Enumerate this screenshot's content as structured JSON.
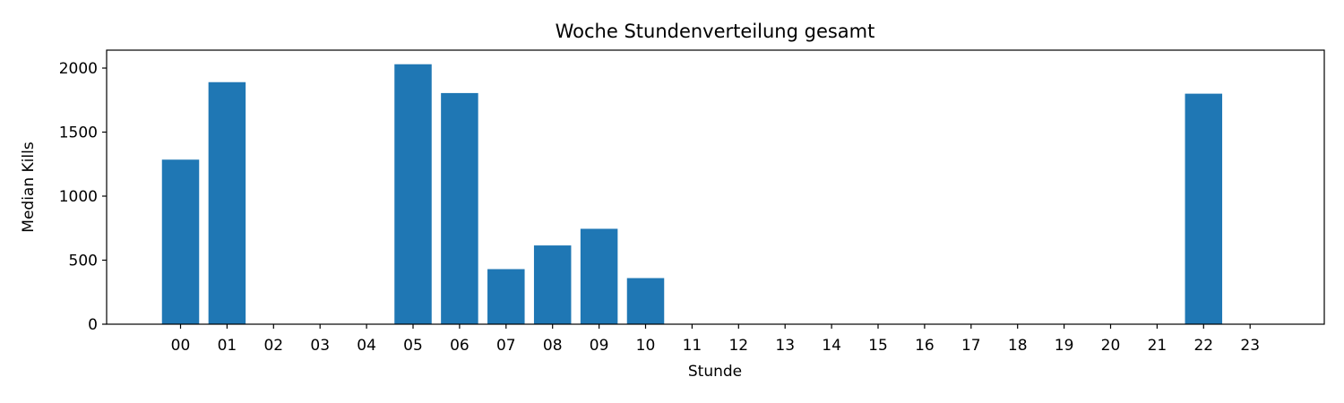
{
  "chart_data": {
    "type": "bar",
    "title": "Woche Stundenverteilung gesamt",
    "xlabel": "Stunde",
    "ylabel": "Median Kills",
    "categories": [
      "00",
      "01",
      "02",
      "03",
      "04",
      "05",
      "06",
      "07",
      "08",
      "09",
      "10",
      "11",
      "12",
      "13",
      "14",
      "15",
      "16",
      "17",
      "18",
      "19",
      "20",
      "21",
      "22",
      "23"
    ],
    "values": [
      1285,
      1890,
      0,
      0,
      0,
      2030,
      1805,
      430,
      615,
      745,
      360,
      0,
      0,
      0,
      0,
      0,
      0,
      0,
      0,
      0,
      0,
      0,
      1800,
      0
    ],
    "ylim": [
      0,
      2140
    ],
    "yticks": [
      0,
      500,
      1000,
      1500,
      2000
    ],
    "grid": false,
    "bar_color": "#1f77b4"
  }
}
